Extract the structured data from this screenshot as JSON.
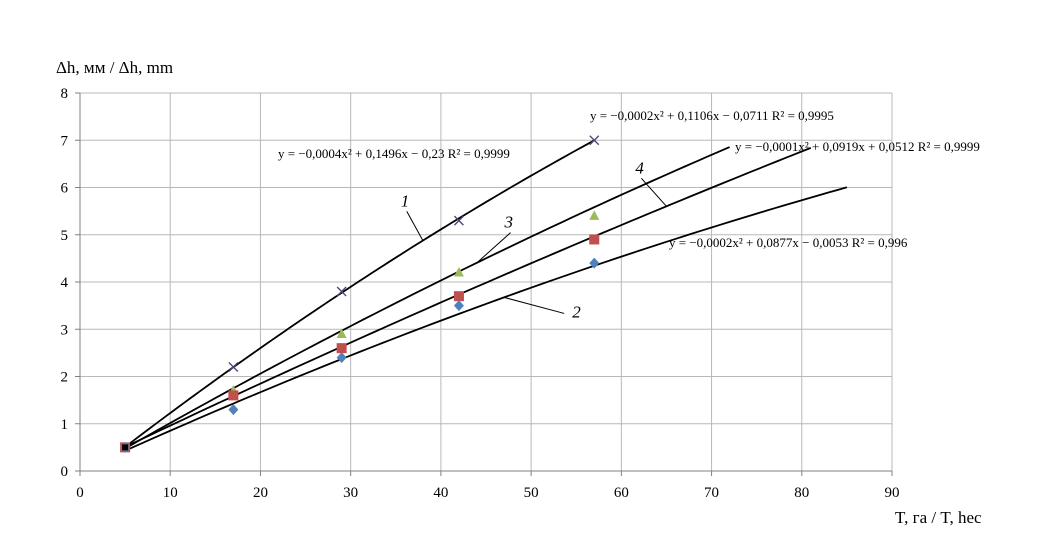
{
  "chart_data": {
    "type": "scatter",
    "xlabel": "T, га / T, hec",
    "ylabel": "Δh, мм / Δh, mm",
    "xlim": [
      0,
      90
    ],
    "ylim": [
      0,
      8
    ],
    "x_ticks": [
      "0",
      "10",
      "20",
      "30",
      "40",
      "50",
      "60",
      "70",
      "80",
      "90"
    ],
    "y_ticks": [
      "0",
      "1",
      "2",
      "3",
      "4",
      "5",
      "6",
      "7",
      "8"
    ],
    "grid": true,
    "series": [
      {
        "marker": "cross",
        "color": "#4a4a7a",
        "points": [
          [
            5,
            0.5
          ],
          [
            17,
            2.2
          ],
          [
            29,
            3.8
          ],
          [
            42,
            5.3
          ],
          [
            57,
            7.0
          ]
        ],
        "trendline": {
          "a": -0.0004,
          "b": 0.1496,
          "c": -0.23,
          "x_range": [
            5,
            57
          ],
          "equation": "y = −0,0004x² + 0,1496x − 0,23 R² = 0,9999"
        }
      },
      {
        "marker": "triangle",
        "color": "#9bbb59",
        "points": [
          [
            5,
            0.5
          ],
          [
            17,
            1.7
          ],
          [
            29,
            2.9
          ],
          [
            42,
            4.2
          ],
          [
            57,
            5.4
          ]
        ],
        "trendline": {
          "a": -0.0002,
          "b": 0.1106,
          "c": -0.0711,
          "x_range": [
            5,
            72
          ],
          "equation": "y = −0,0002x² + 0,1106x − 0,0711 R² = 0,9995"
        }
      },
      {
        "marker": "square",
        "color": "#c0504d",
        "points": [
          [
            5,
            0.5
          ],
          [
            17,
            1.6
          ],
          [
            29,
            2.6
          ],
          [
            42,
            3.7
          ],
          [
            57,
            4.9
          ]
        ],
        "trendline": {
          "a": -0.0001,
          "b": 0.0919,
          "c": 0.0512,
          "x_range": [
            5,
            81
          ],
          "equation": "y = −0,0001x² + 0,0919x + 0,0512 R² = 0,9999"
        }
      },
      {
        "marker": "diamond",
        "color": "#4f81bd",
        "points": [
          [
            5,
            0.5
          ],
          [
            17,
            1.3
          ],
          [
            29,
            2.4
          ],
          [
            42,
            3.5
          ],
          [
            57,
            4.4
          ]
        ],
        "trendline": {
          "a": -0.0002,
          "b": 0.0877,
          "c": -0.0053,
          "x_range": [
            5,
            85
          ],
          "equation": "y = −0,0002x² + 0,0877x − 0,0053 R² = 0,996"
        }
      }
    ],
    "curve_labels": [
      {
        "text": "1",
        "x": 36,
        "y": 5.6
      },
      {
        "text": "3",
        "x": 47.5,
        "y": 5.15
      },
      {
        "text": "4",
        "x": 62,
        "y": 6.3
      },
      {
        "text": "2",
        "x": 55,
        "y": 3.25
      }
    ]
  }
}
